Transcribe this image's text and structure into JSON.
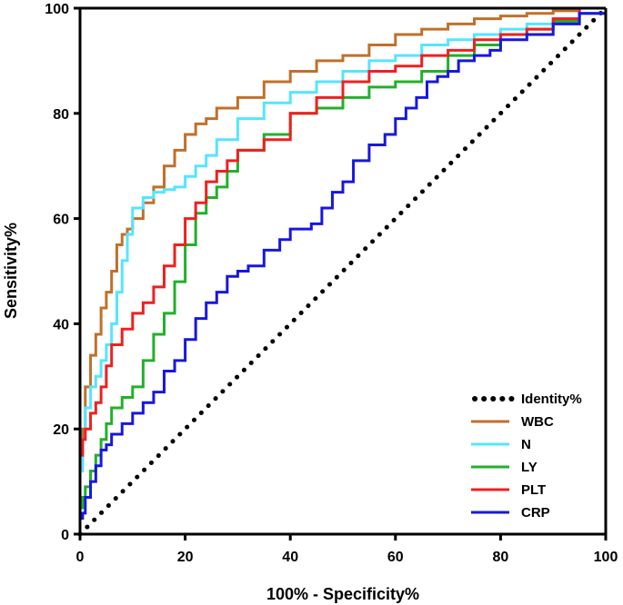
{
  "chart_data": {
    "type": "line",
    "xlabel": "100% - Specificity%",
    "ylabel": "Sensitivity%",
    "xlim": [
      0,
      100
    ],
    "ylim": [
      0,
      100
    ],
    "xticks": [
      "0",
      "20",
      "40",
      "60",
      "80",
      "100"
    ],
    "yticks": [
      "0",
      "20",
      "40",
      "60",
      "80",
      "100"
    ],
    "legend_position": "bottom-right",
    "identity": {
      "name": "Identity%",
      "color": "#000000"
    },
    "series": [
      {
        "name": "WBC",
        "color": "#C0702A",
        "x": [
          0,
          0.5,
          1,
          2,
          3,
          4,
          5,
          6,
          7,
          8,
          9,
          10,
          12,
          14,
          16,
          18,
          20,
          22,
          24,
          26,
          30,
          35,
          40,
          45,
          50,
          55,
          60,
          65,
          70,
          75,
          80,
          85,
          90,
          95,
          100
        ],
        "y": [
          0,
          14,
          20,
          28,
          34,
          38,
          43,
          46,
          50,
          55,
          57,
          58,
          60,
          63,
          66,
          70,
          73,
          76,
          78,
          79,
          81,
          83,
          86,
          88,
          90,
          91,
          93,
          95,
          96,
          97,
          98,
          98.5,
          99,
          99.5,
          100
        ]
      },
      {
        "name": "N",
        "color": "#55E5FF",
        "x": [
          0,
          0.5,
          1,
          2,
          3,
          4,
          5,
          6,
          7,
          8,
          9,
          10,
          12,
          14,
          16,
          18,
          20,
          22,
          24,
          26,
          30,
          35,
          40,
          45,
          50,
          55,
          60,
          65,
          70,
          75,
          80,
          85,
          90,
          95,
          100
        ],
        "y": [
          0,
          12,
          18,
          24,
          28,
          30,
          33,
          36,
          40,
          46,
          52,
          57,
          62,
          64,
          65,
          65.5,
          66,
          68,
          70,
          72,
          75,
          79,
          82,
          84,
          86,
          88,
          90,
          91,
          93,
          94,
          95,
          96,
          97,
          98,
          100
        ]
      },
      {
        "name": "LY",
        "color": "#22B02A",
        "x": [
          0,
          0.5,
          1,
          2,
          3,
          4,
          5,
          6,
          8,
          10,
          12,
          14,
          16,
          18,
          20,
          22,
          24,
          26,
          28,
          30,
          35,
          40,
          45,
          50,
          55,
          60,
          65,
          70,
          75,
          80,
          85,
          90,
          95,
          100
        ],
        "y": [
          0,
          5,
          7,
          9,
          12,
          15,
          18,
          21,
          24,
          26,
          28,
          33,
          38,
          42,
          48,
          55,
          61,
          64,
          66,
          69,
          73,
          76,
          80,
          81,
          83,
          85,
          86,
          88,
          91,
          93,
          95,
          96,
          97.5,
          99
        ]
      },
      {
        "name": "PLT",
        "color": "#EE2020",
        "x": [
          0,
          0.5,
          1,
          2,
          3,
          4,
          5,
          6,
          8,
          10,
          12,
          14,
          16,
          18,
          20,
          22,
          24,
          26,
          28,
          30,
          35,
          40,
          45,
          50,
          55,
          60,
          65,
          70,
          75,
          80,
          85,
          90,
          95,
          100
        ],
        "y": [
          0,
          15,
          18,
          20,
          23,
          25,
          28,
          32,
          36,
          39,
          42,
          44,
          47,
          51,
          55,
          60,
          63,
          67,
          69,
          71,
          73,
          75,
          80,
          83,
          86,
          88,
          89,
          91,
          92,
          94,
          95,
          96,
          98,
          100
        ]
      },
      {
        "name": "CRP",
        "color": "#1717E0",
        "x": [
          0,
          0.5,
          1,
          2,
          3,
          4,
          5,
          6,
          8,
          10,
          12,
          14,
          16,
          18,
          20,
          22,
          24,
          26,
          28,
          30,
          32,
          35,
          38,
          40,
          44,
          46,
          48,
          50,
          52,
          55,
          58,
          60,
          62,
          64,
          66,
          68,
          70,
          72,
          75,
          78,
          80,
          85,
          90,
          95,
          100
        ],
        "y": [
          0,
          3,
          4,
          7,
          10,
          13,
          16,
          17,
          19,
          21,
          23,
          25,
          27,
          31,
          33,
          37,
          41,
          44,
          46,
          49,
          50,
          51,
          54,
          56,
          58,
          59,
          62,
          65,
          67,
          71,
          74,
          76,
          79,
          81,
          83,
          86,
          87,
          88,
          90,
          91,
          92,
          94,
          95,
          97,
          99
        ]
      }
    ]
  }
}
